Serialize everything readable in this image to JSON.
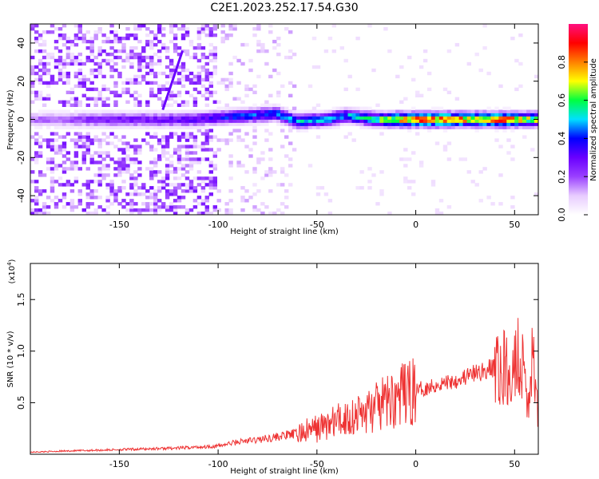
{
  "figure": {
    "title": "C2E1.2023.252.17.54.G30"
  },
  "chart_data": [
    {
      "type": "heatmap",
      "xlabel": "Height of straight line (km)",
      "ylabel": "Frequency (Hz)",
      "xlim": [
        -195,
        62
      ],
      "ylim": [
        -50,
        50
      ],
      "xticks": [
        -150,
        -100,
        -50,
        0,
        50
      ],
      "xtick_labels": [
        "-150",
        "-100",
        "-50",
        "0",
        "50"
      ],
      "yticks": [
        -40,
        -20,
        0,
        20,
        40
      ],
      "ytick_labels": [
        "-40",
        "-20",
        "0",
        "20",
        "40"
      ],
      "colorbar": {
        "label": "Normalized spectral amplitude",
        "range": [
          0,
          1
        ],
        "ticks": [
          0.0,
          0.2,
          0.4,
          0.6,
          0.8
        ],
        "tick_labels": [
          "0.0",
          "0.2",
          "0.4",
          "0.6",
          "0.8"
        ],
        "colormap": [
          "#ffffff",
          "#e8ccff",
          "#9a40ff",
          "#6a00ff",
          "#0000ff",
          "#00e0ff",
          "#00ff40",
          "#ffff00",
          "#ff8000",
          "#ff0000",
          "#ff1080"
        ]
      },
      "ridge": [
        {
          "x": -190,
          "y": 0,
          "amp": 0.18
        },
        {
          "x": -175,
          "y": 0,
          "amp": 0.22
        },
        {
          "x": -160,
          "y": 0,
          "amp": 0.28
        },
        {
          "x": -145,
          "y": 0,
          "amp": 0.3
        },
        {
          "x": -130,
          "y": 0,
          "amp": 0.3
        },
        {
          "x": -115,
          "y": 0,
          "amp": 0.32
        },
        {
          "x": -100,
          "y": 1,
          "amp": 0.38
        },
        {
          "x": -85,
          "y": 2,
          "amp": 0.45
        },
        {
          "x": -70,
          "y": 3,
          "amp": 0.48
        },
        {
          "x": -60,
          "y": -1,
          "amp": 0.52
        },
        {
          "x": -45,
          "y": 0,
          "amp": 0.5
        },
        {
          "x": -35,
          "y": 2,
          "amp": 0.5
        },
        {
          "x": -20,
          "y": 0,
          "amp": 0.6
        },
        {
          "x": -10,
          "y": 0,
          "amp": 0.8
        },
        {
          "x": 0,
          "y": 0,
          "amp": 0.9
        },
        {
          "x": 15,
          "y": 0,
          "amp": 0.88
        },
        {
          "x": 30,
          "y": 0,
          "amp": 0.82
        },
        {
          "x": 45,
          "y": 0,
          "amp": 0.92
        },
        {
          "x": 55,
          "y": 0,
          "amp": 0.75
        },
        {
          "x": 60,
          "y": 0,
          "amp": 0.7
        }
      ],
      "streak": {
        "x_start": -128,
        "y_start": 5,
        "x_end": -118,
        "y_end": 36
      }
    },
    {
      "type": "line",
      "xlabel": "Height of straight line (km)",
      "ylabel": "SNR (10 * v/v)",
      "scale_note": "(x10",
      "scale_exponent": "4",
      "scale_note_end": ")",
      "xlim": [
        -195,
        62
      ],
      "ylim": [
        0,
        1.85
      ],
      "xticks": [
        -150,
        -100,
        -50,
        0,
        50
      ],
      "xtick_labels": [
        "-150",
        "-100",
        "-50",
        "0",
        "50"
      ],
      "yticks": [
        0.5,
        1.0,
        1.5
      ],
      "ytick_labels": [
        "0.5",
        "1.0",
        "1.5"
      ],
      "color": "#ee3333",
      "x": [
        -195,
        -180,
        -160,
        -140,
        -120,
        -100,
        -90,
        -80,
        -70,
        -60,
        -50,
        -40,
        -30,
        -20,
        -10,
        0,
        10,
        20,
        30,
        40,
        45,
        50,
        52,
        55,
        57,
        59,
        60,
        62
      ],
      "y": [
        0.02,
        0.03,
        0.04,
        0.05,
        0.06,
        0.08,
        0.12,
        0.14,
        0.17,
        0.2,
        0.25,
        0.32,
        0.38,
        0.45,
        0.55,
        0.62,
        0.67,
        0.72,
        0.78,
        0.84,
        0.86,
        0.88,
        1.0,
        0.85,
        0.4,
        1.1,
        0.7,
        0.4
      ]
    }
  ]
}
